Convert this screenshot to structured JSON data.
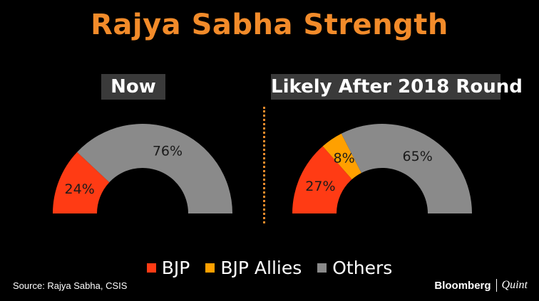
{
  "title": "Rajya Sabha Strength",
  "colors": {
    "title": "#f28b2a",
    "bjp": "#ff3b14",
    "bjp_allies": "#ffa000",
    "others": "#8a8a8a",
    "label_bg": "#3a3a3a",
    "divider": "#f28b2a"
  },
  "chart_data": [
    {
      "type": "pie",
      "variant": "half-donut",
      "title": "Now",
      "categories": [
        "BJP",
        "Others"
      ],
      "values": [
        24,
        76
      ],
      "labels": [
        "24%",
        "76%"
      ]
    },
    {
      "type": "pie",
      "variant": "half-donut",
      "title": "Likely After 2018 Round",
      "categories": [
        "BJP",
        "BJP Allies",
        "Others"
      ],
      "values": [
        27,
        8,
        65
      ],
      "labels": [
        "27%",
        "8%",
        "65%"
      ]
    }
  ],
  "legend": {
    "placement": "bottom",
    "items": [
      {
        "label": "BJP",
        "color_key": "bjp"
      },
      {
        "label": "BJP Allies",
        "color_key": "bjp_allies"
      },
      {
        "label": "Others",
        "color_key": "others"
      }
    ]
  },
  "footer": {
    "source": "Source: Rajya Sabha, CSIS",
    "brand_primary": "Bloomberg",
    "brand_secondary": "Quint"
  }
}
